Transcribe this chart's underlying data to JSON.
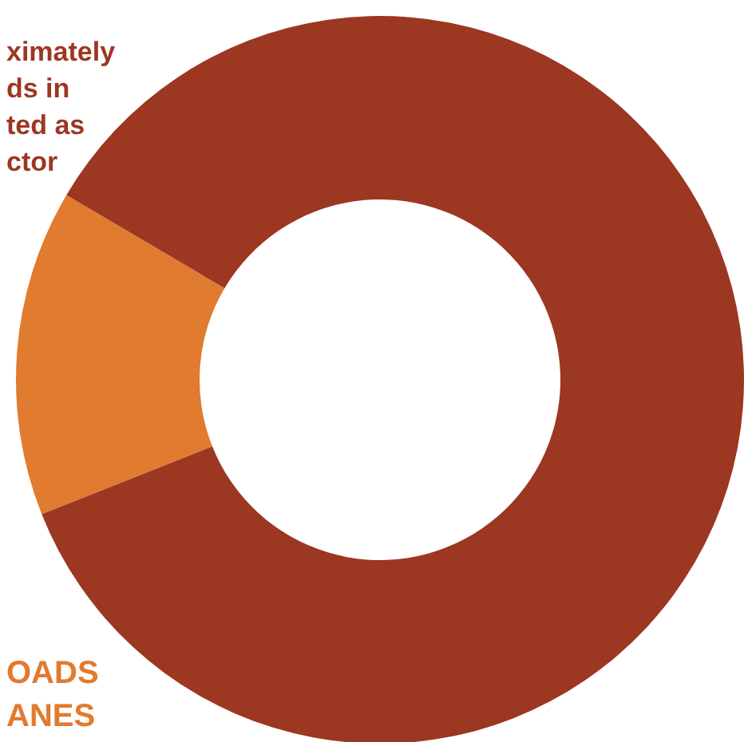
{
  "chart_data": {
    "type": "donut",
    "categories": [
      null,
      null
    ],
    "values": [
      14.5,
      85.5
    ],
    "colors": [
      "#e07b30",
      "#9c3722"
    ],
    "annotations": [
      "ximately\nds in\nted as\nctor",
      "OADS\nANES"
    ]
  }
}
